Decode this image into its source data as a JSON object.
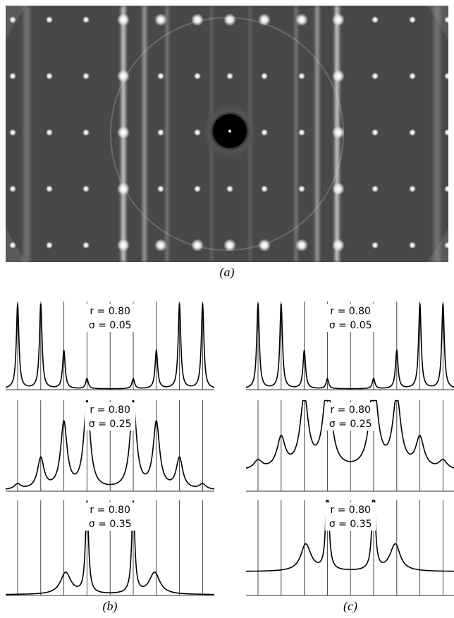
{
  "figure": {
    "caption_a": "(a)",
    "caption_b": "(b)",
    "caption_c": "(c)",
    "panels": [
      {
        "r": "r = 0.80",
        "sigma": "σ = 0.05"
      },
      {
        "r": "r = 0.80",
        "sigma": "σ = 0.25"
      },
      {
        "r": "r = 0.80",
        "sigma": "σ = 0.35"
      },
      {
        "r": "r = 0.80",
        "sigma": "σ = 0.05"
      },
      {
        "r": "r = 0.80",
        "sigma": "σ = 0.25"
      },
      {
        "r": "r = 0.80",
        "sigma": "σ = 0.35"
      }
    ]
  }
}
